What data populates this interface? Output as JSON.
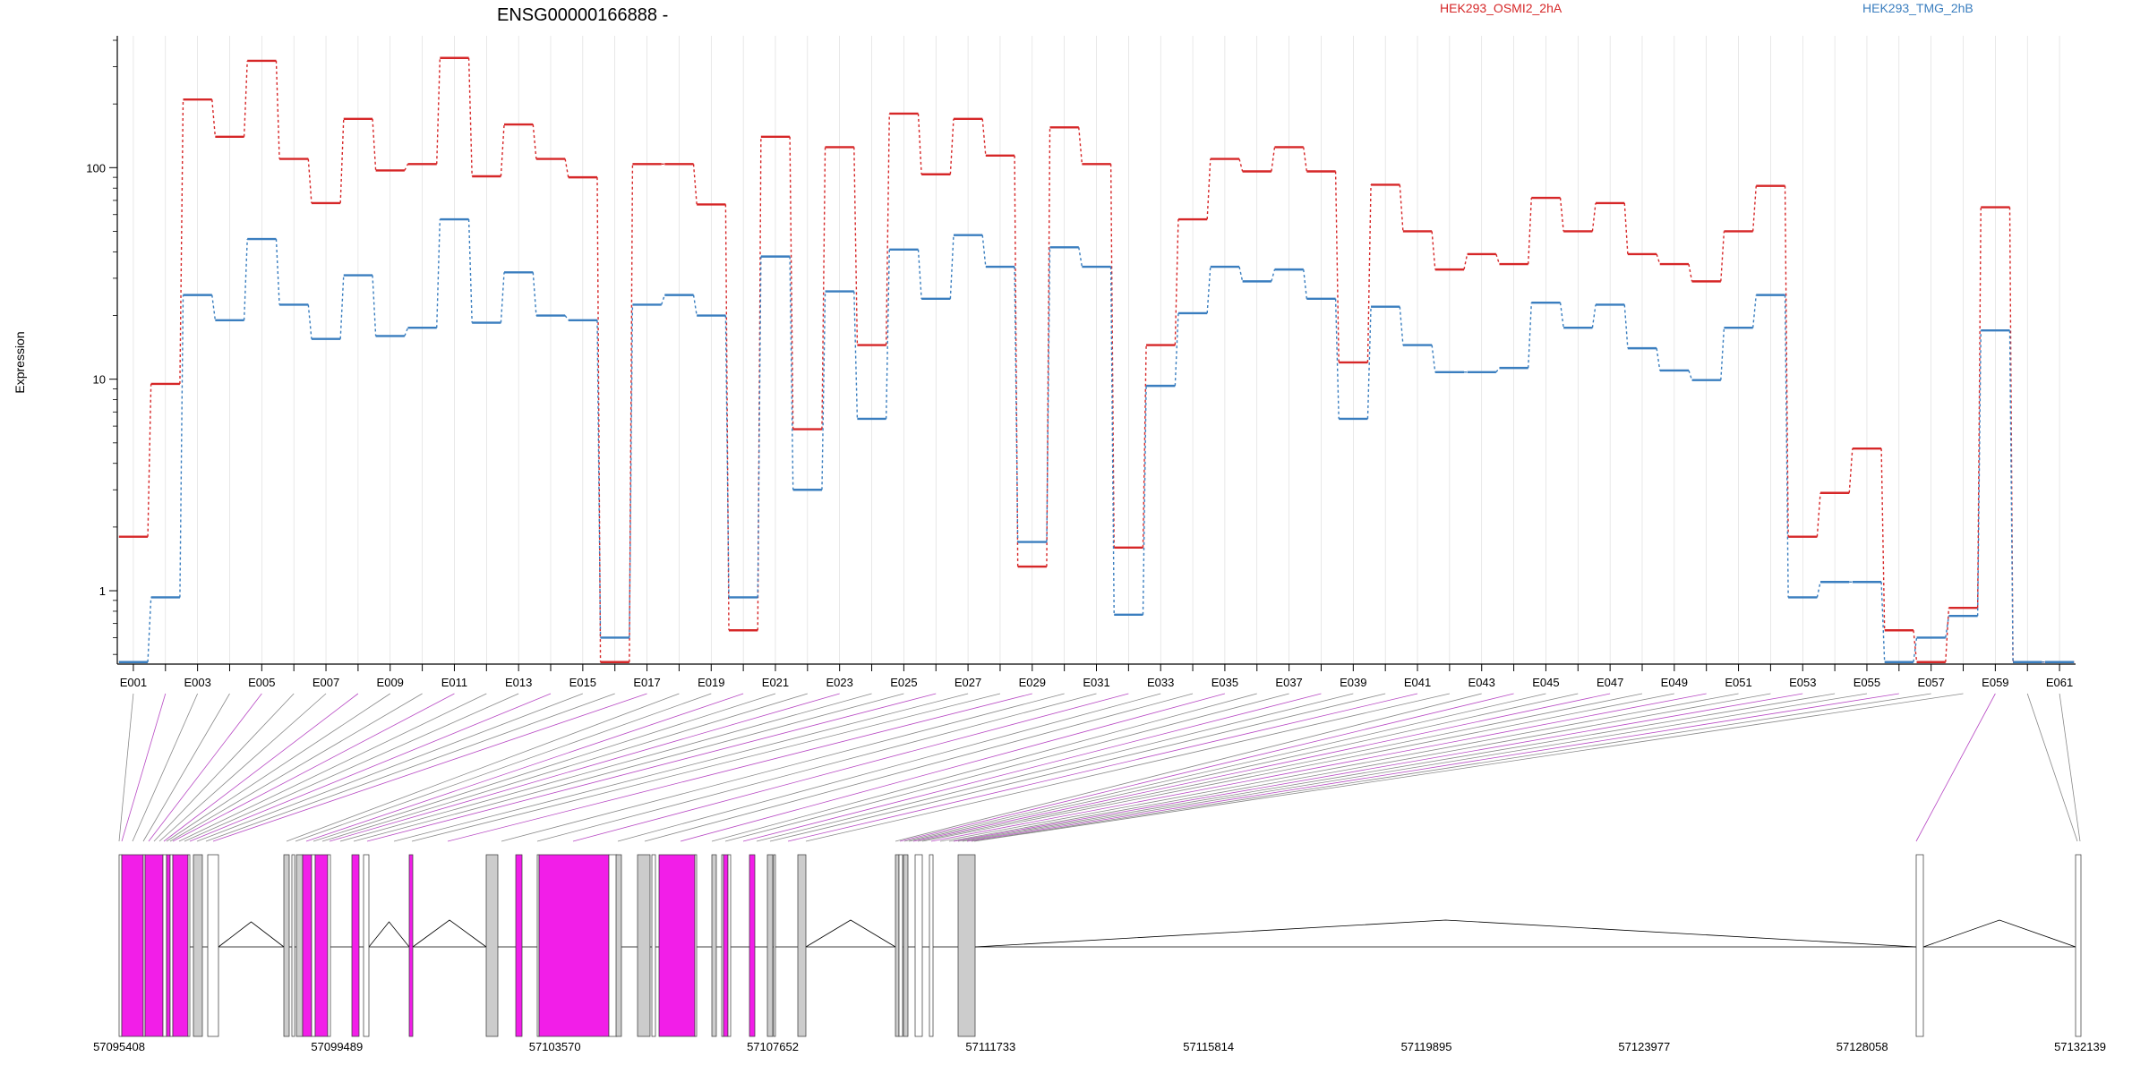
{
  "chart_data": {
    "type": "line",
    "title": "ENSG00000166888 -",
    "ylabel": "Expression",
    "yscale": "log",
    "ylim": [
      0.45,
      420
    ],
    "yticks": [
      {
        "value": 1,
        "label": "1"
      },
      {
        "value": 10,
        "label": "10"
      },
      {
        "value": 100,
        "label": "100"
      }
    ],
    "legend_placement": "top",
    "categories": [
      "E001",
      "E002",
      "E003",
      "E004",
      "E005",
      "E006",
      "E007",
      "E008",
      "E009",
      "E010",
      "E011",
      "E012",
      "E013",
      "E014",
      "E015",
      "E016",
      "E017",
      "E018",
      "E019",
      "E020",
      "E021",
      "E022",
      "E023",
      "E024",
      "E025",
      "E026",
      "E027",
      "E028",
      "E029",
      "E030",
      "E031",
      "E032",
      "E033",
      "E034",
      "E035",
      "E036",
      "E037",
      "E038",
      "E039",
      "E040",
      "E041",
      "E042",
      "E043",
      "E044",
      "E045",
      "E046",
      "E047",
      "E048",
      "E049",
      "E050",
      "E051",
      "E052",
      "E053",
      "E054",
      "E055",
      "E056",
      "E057",
      "E058",
      "E059",
      "E060",
      "E061"
    ],
    "x_tick_labels": [
      "E001",
      "E003",
      "E005",
      "E007",
      "E009",
      "E011",
      "E013",
      "E015",
      "E017",
      "E019",
      "E021",
      "E023",
      "E025",
      "E027",
      "E029",
      "E031",
      "E033",
      "E035",
      "E037",
      "E039",
      "E041",
      "E043",
      "E045",
      "E047",
      "E049",
      "E051",
      "E053",
      "E055",
      "E057",
      "E059",
      "E061"
    ],
    "series": [
      {
        "name": "HEK293_OSMI2_2hA",
        "color": "#d62728",
        "values": [
          1.8,
          9.5,
          210,
          140,
          320,
          110,
          68,
          170,
          97,
          104,
          330,
          91,
          160,
          110,
          90,
          0.46,
          104,
          104,
          67,
          0.65,
          140,
          5.8,
          125,
          14.5,
          180,
          93,
          170,
          114,
          1.3,
          155,
          104,
          1.6,
          14.5,
          57,
          110,
          96,
          125,
          96,
          12,
          83,
          50,
          33,
          39,
          35,
          72,
          50,
          68,
          39,
          35,
          29,
          50,
          82,
          1.8,
          2.9,
          4.7,
          0.65,
          0.46,
          0.83,
          65,
          0.46,
          0.46
        ]
      },
      {
        "name": "HEK293_TMG_2hB",
        "color": "#3a7ebf",
        "values": [
          0.46,
          0.93,
          25,
          19,
          46,
          22.5,
          15.5,
          31,
          16,
          17.5,
          57,
          18.5,
          32,
          20,
          19,
          0.6,
          22.5,
          25,
          20,
          0.93,
          38,
          3,
          26,
          6.5,
          41,
          24,
          48,
          34,
          1.7,
          42,
          34,
          0.77,
          9.3,
          20.5,
          34,
          29,
          33,
          24,
          6.5,
          22,
          14.5,
          10.8,
          10.8,
          11.3,
          23,
          17.5,
          22.5,
          14,
          11,
          9.9,
          17.5,
          25,
          0.93,
          1.1,
          1.1,
          0.46,
          0.6,
          0.76,
          17,
          0.46,
          0.46
        ]
      }
    ],
    "genomic_axis": {
      "tick_labels": [
        "57095408",
        "57099489",
        "57103570",
        "57107652",
        "57111733",
        "57115814",
        "57119895",
        "57123977",
        "57128058",
        "57132139"
      ]
    }
  }
}
